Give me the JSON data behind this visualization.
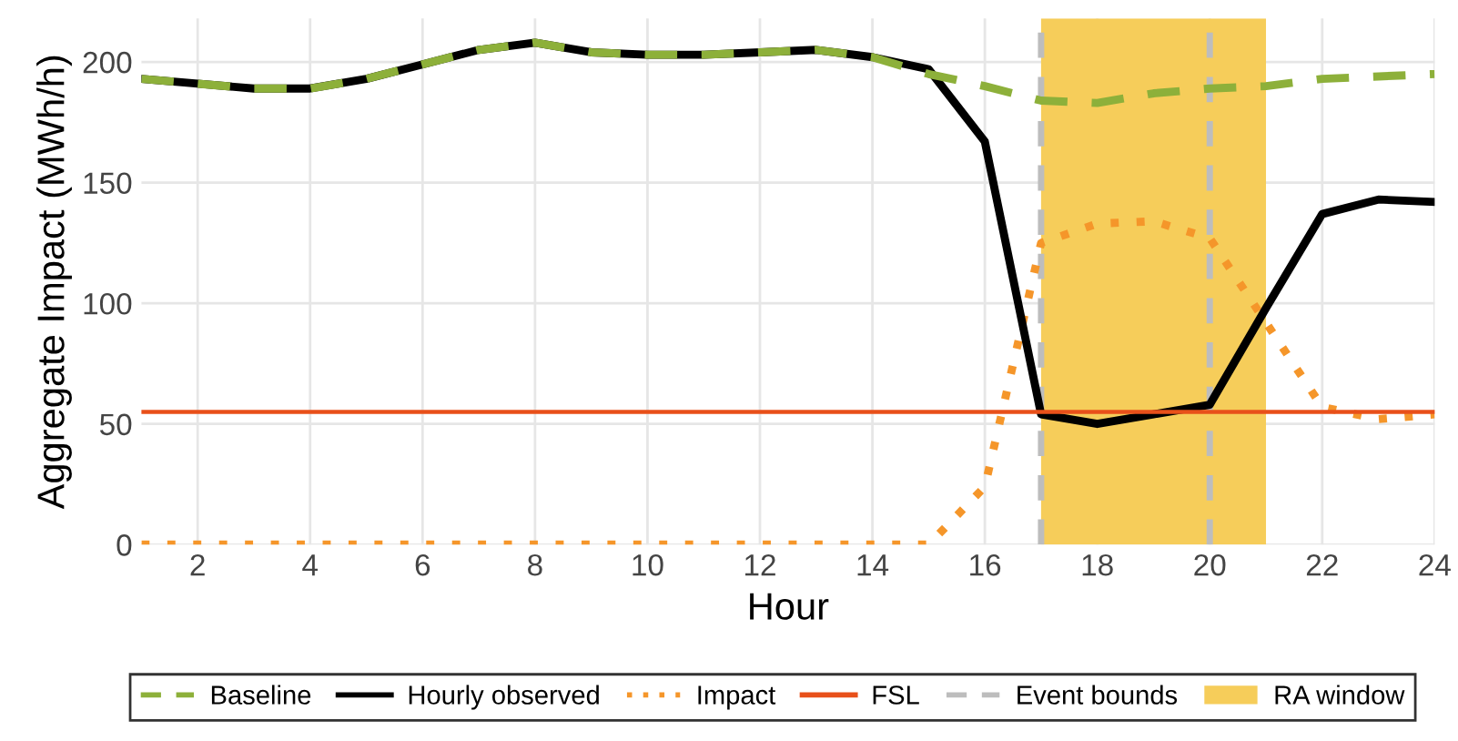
{
  "chart_data": {
    "type": "line",
    "xlabel": "Hour",
    "ylabel": "Aggregate Impact (MWh/h)",
    "x": [
      1,
      2,
      3,
      4,
      5,
      6,
      7,
      8,
      9,
      10,
      11,
      12,
      13,
      14,
      15,
      16,
      17,
      18,
      19,
      20,
      21,
      22,
      23,
      24
    ],
    "series": [
      {
        "name": "Baseline",
        "color": "#8db03a",
        "line_style": "dashed",
        "values": [
          193,
          191,
          189,
          189,
          193,
          199,
          205,
          208,
          204,
          203,
          203,
          204,
          205,
          202,
          195,
          190,
          184,
          183,
          187,
          189,
          190,
          193,
          194,
          195
        ]
      },
      {
        "name": "Hourly observed",
        "color": "#000000",
        "line_style": "solid",
        "values": [
          193,
          191,
          189,
          189,
          193,
          199,
          205,
          208,
          204,
          203,
          203,
          204,
          205,
          202,
          197,
          167,
          54,
          50,
          54,
          58,
          98,
          137,
          143,
          142
        ]
      },
      {
        "name": "Impact",
        "color": "#f5962a",
        "line_style": "dotted",
        "values": [
          0,
          0,
          0,
          0,
          0,
          0,
          0,
          0,
          0,
          0,
          0,
          0,
          0,
          0,
          0,
          24,
          125,
          133,
          134,
          127,
          92,
          57,
          52,
          54
        ]
      }
    ],
    "ref_lines": [
      {
        "axis": "y",
        "value": 55,
        "label": "FSL",
        "color": "#e8501a",
        "line_style": "solid"
      },
      {
        "axis": "x",
        "value": 17,
        "label": "Event bounds",
        "color": "#bdbdbd",
        "line_style": "dashed"
      },
      {
        "axis": "x",
        "value": 20,
        "color": "#bdbdbd",
        "line_style": "dashed"
      }
    ],
    "bands": [
      {
        "axis": "x",
        "from": 17,
        "to": 21,
        "label": "RA window",
        "color": "#f6cd5a"
      }
    ],
    "xlim": [
      1,
      24
    ],
    "xticks": [
      2,
      4,
      6,
      8,
      10,
      12,
      14,
      16,
      18,
      20,
      22,
      24
    ],
    "ylim": [
      0,
      218
    ],
    "yticks": [
      0,
      50,
      100,
      150,
      200
    ],
    "grid": true,
    "legend": "bottom"
  }
}
